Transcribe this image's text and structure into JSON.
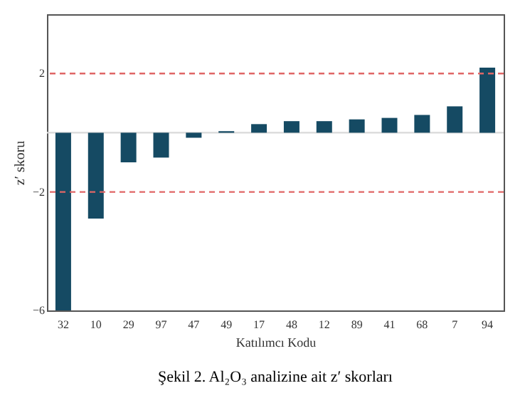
{
  "chart_data": {
    "type": "bar",
    "title": "Şekil 2. Al₂O₃ analizine ait z′ skorları",
    "xlabel": "Katılımcı Kodu",
    "ylabel": "z′ skoru",
    "categories": [
      "32",
      "10",
      "29",
      "97",
      "47",
      "49",
      "17",
      "48",
      "12",
      "89",
      "41",
      "68",
      "7",
      "94"
    ],
    "values": [
      -6,
      -2.9,
      -1.0,
      -0.84,
      -0.17,
      0.05,
      0.29,
      0.39,
      0.39,
      0.45,
      0.5,
      0.6,
      0.89,
      2.2
    ],
    "color": "#154a63",
    "ylim": [
      -6,
      4
    ],
    "yticks": [
      2,
      -2,
      -6
    ],
    "grid": false,
    "ref_lines": [
      {
        "axis": "y",
        "value": 2,
        "color": "#e06666",
        "line_style": "dashed"
      },
      {
        "axis": "y",
        "value": -2,
        "color": "#e06666",
        "line_style": "dashed"
      },
      {
        "axis": "y",
        "value": 0,
        "color": "#d9d9d9",
        "line_style": "solid"
      }
    ]
  }
}
